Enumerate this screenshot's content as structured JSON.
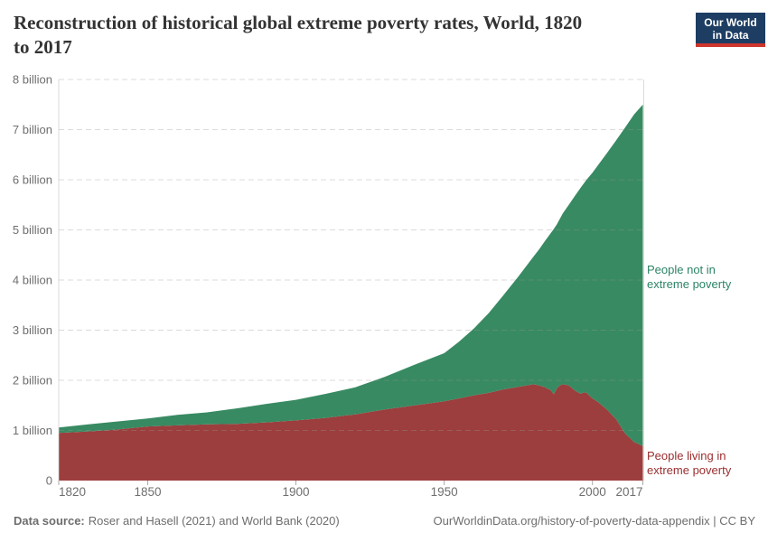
{
  "header": {
    "title_lines": [
      "Reconstruction of historical global extreme poverty rates, World, 1820",
      "to 2017"
    ],
    "logo": {
      "line1": "Our World",
      "line2": "in Data",
      "bg_color": "#1d3d63",
      "bar_color": "#ce352c"
    }
  },
  "chart_data": {
    "type": "area",
    "stacked": true,
    "title": "Reconstruction of historical global extreme poverty rates, World, 1820 to 2017",
    "unit": "people (billions)",
    "x_range": [
      1820,
      2017
    ],
    "y_range_billions": [
      0,
      8
    ],
    "grid": "horizontal dashed",
    "legend_position": "right-edge annotations",
    "stack_total_represents": "world population",
    "x_ticks": [
      {
        "year": 1820,
        "align": "start"
      },
      {
        "year": 1850,
        "align": "middle"
      },
      {
        "year": 1900,
        "align": "middle"
      },
      {
        "year": 1950,
        "align": "middle"
      },
      {
        "year": 2000,
        "align": "middle"
      },
      {
        "year": 2017,
        "align": "end"
      }
    ],
    "y_ticks": [
      {
        "value": 0,
        "label": "0"
      },
      {
        "value": 1,
        "label": "1 billion"
      },
      {
        "value": 2,
        "label": "2 billion"
      },
      {
        "value": 3,
        "label": "3 billion"
      },
      {
        "value": 4,
        "label": "4 billion"
      },
      {
        "value": 5,
        "label": "5 billion"
      },
      {
        "value": 6,
        "label": "6 billion"
      },
      {
        "value": 7,
        "label": "7 billion"
      },
      {
        "value": 8,
        "label": "8 billion"
      }
    ],
    "x": [
      1820,
      1830,
      1840,
      1850,
      1860,
      1870,
      1880,
      1890,
      1900,
      1910,
      1920,
      1930,
      1940,
      1950,
      1955,
      1960,
      1965,
      1970,
      1975,
      1980,
      1982,
      1984,
      1986,
      1987,
      1988,
      1989,
      1990,
      1992,
      1994,
      1996,
      1997,
      1998,
      2000,
      2002,
      2005,
      2008,
      2011,
      2014,
      2017
    ],
    "series": [
      {
        "name": "People living in extreme poverty",
        "color": "#9c3e3d",
        "label_color": "#9a2e2e",
        "values_billions": [
          0.95,
          0.98,
          1.02,
          1.08,
          1.1,
          1.12,
          1.13,
          1.16,
          1.2,
          1.25,
          1.32,
          1.42,
          1.5,
          1.58,
          1.64,
          1.7,
          1.75,
          1.82,
          1.87,
          1.92,
          1.9,
          1.86,
          1.8,
          1.72,
          1.84,
          1.9,
          1.92,
          1.9,
          1.8,
          1.73,
          1.76,
          1.75,
          1.64,
          1.56,
          1.41,
          1.22,
          0.94,
          0.77,
          0.69
        ]
      },
      {
        "name": "People not in extreme poverty",
        "color": "#388a62",
        "label_color": "#2c8465",
        "values_billions": [
          0.11,
          0.14,
          0.16,
          0.16,
          0.21,
          0.24,
          0.31,
          0.37,
          0.41,
          0.48,
          0.54,
          0.65,
          0.81,
          0.96,
          1.13,
          1.33,
          1.59,
          1.88,
          2.2,
          2.54,
          2.71,
          2.92,
          3.14,
          3.3,
          3.27,
          3.32,
          3.41,
          3.6,
          3.87,
          4.11,
          4.16,
          4.25,
          4.5,
          4.74,
          5.13,
          5.57,
          6.1,
          6.53,
          6.81
        ]
      }
    ]
  },
  "footer": {
    "source_label": "Data source:",
    "source": "Roser and Hasell (2021) and World Bank (2020)",
    "credit": "OurWorldinData.org/history-of-poverty-data-appendix | CC BY"
  }
}
